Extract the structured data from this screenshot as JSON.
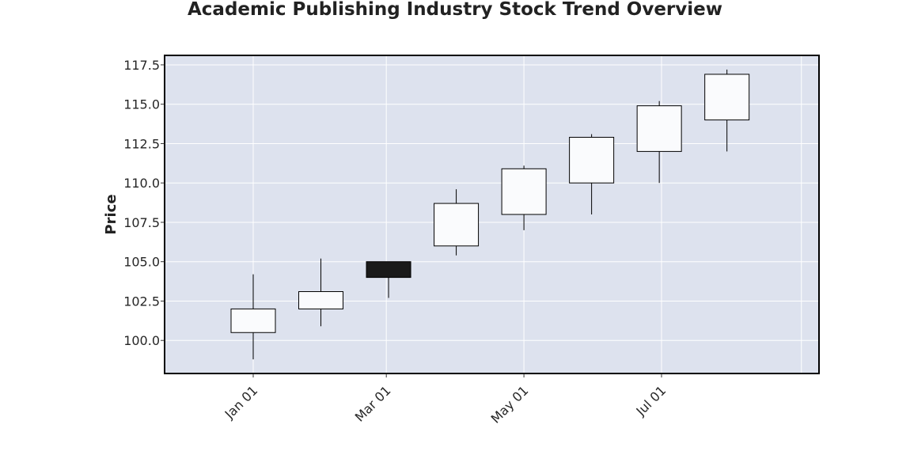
{
  "chart_data": {
    "type": "candlestick",
    "title": "Academic Publishing Industry Stock Trend Overview",
    "xlabel": "",
    "ylabel": "Price",
    "x_ticks": [
      "Jan 01",
      "Mar 01",
      "May 01",
      "Jul 01"
    ],
    "y_ticks": [
      "100.0",
      "102.5",
      "105.0",
      "107.5",
      "110.0",
      "112.5",
      "115.0",
      "117.5"
    ],
    "ylim": [
      97.9,
      118.1
    ],
    "grid": true,
    "colors": {
      "background": "#dde2ee",
      "grid": "#ffffff",
      "up_fill": "#fafbfd",
      "down_fill": "#1a1a1a",
      "edge": "#000000"
    },
    "candles": [
      {
        "date": "2023-01-01",
        "open": 100.5,
        "high": 104.2,
        "low": 98.8,
        "close": 102.0
      },
      {
        "date": "2023-01-31",
        "open": 102.0,
        "high": 105.2,
        "low": 100.9,
        "close": 103.1
      },
      {
        "date": "2023-03-02",
        "open": 105.0,
        "high": 105.0,
        "low": 102.7,
        "close": 104.0
      },
      {
        "date": "2023-04-01",
        "open": 106.0,
        "high": 109.6,
        "low": 105.4,
        "close": 108.7
      },
      {
        "date": "2023-05-01",
        "open": 108.0,
        "high": 111.1,
        "low": 107.0,
        "close": 110.9
      },
      {
        "date": "2023-05-31",
        "open": 110.0,
        "high": 113.1,
        "low": 108.0,
        "close": 112.9
      },
      {
        "date": "2023-06-30",
        "open": 112.0,
        "high": 115.2,
        "low": 110.0,
        "close": 114.9
      },
      {
        "date": "2023-07-30",
        "open": 114.0,
        "high": 117.2,
        "low": 112.0,
        "close": 116.9
      }
    ]
  }
}
